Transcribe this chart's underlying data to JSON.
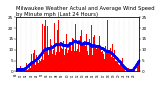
{
  "title": "Milwaukee Weather Actual and Average Wind Speed by Minute mph (Last 24 Hours)",
  "title_fontsize": 3.8,
  "background_color": "#ffffff",
  "plot_bg_color": "#ffffff",
  "bar_color": "#ff0000",
  "line_color": "#0000ff",
  "grid_color": "#c8c8c8",
  "ylim": [
    0,
    25
  ],
  "ytick_values": [
    0,
    5,
    10,
    15,
    20,
    25
  ],
  "n_points": 1440,
  "seed": 99
}
